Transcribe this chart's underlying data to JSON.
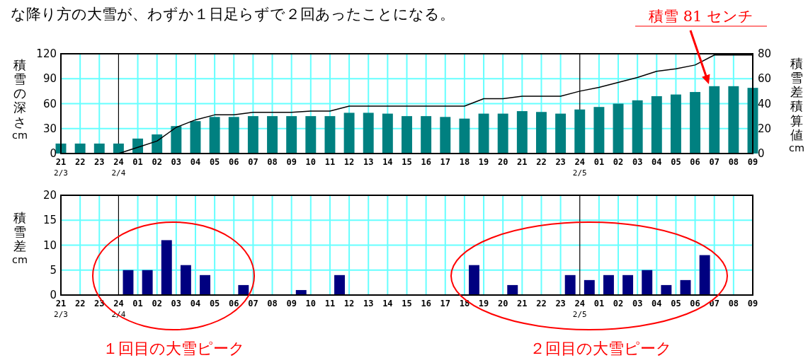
{
  "chart_data": [
    {
      "type": "bar",
      "annotations": [
        "な降り方の大雪が、わずか１日足らずで２回あったことになる。",
        "積雪 81 センチ"
      ],
      "ylabel": "積雪の深さ cm",
      "y2label": "積雪差積算値 cm",
      "x": [
        "--02-03T21:00",
        "--02-03T22:00",
        "--02-03T23:00",
        "--02-04T00:00",
        "--02-04T01:00",
        "--02-04T02:00",
        "--02-04T03:00",
        "--02-04T04:00",
        "--02-04T05:00",
        "--02-04T06:00",
        "--02-04T07:00",
        "--02-04T08:00",
        "--02-04T09:00",
        "--02-04T10:00",
        "--02-04T11:00",
        "--02-04T12:00",
        "--02-04T13:00",
        "--02-04T14:00",
        "--02-04T15:00",
        "--02-04T16:00",
        "--02-04T17:00",
        "--02-04T18:00",
        "--02-04T19:00",
        "--02-04T20:00",
        "--02-04T21:00",
        "--02-04T22:00",
        "--02-04T23:00",
        "--02-05T00:00",
        "--02-05T01:00",
        "--02-05T02:00",
        "--02-05T03:00",
        "--02-05T04:00",
        "--02-05T05:00",
        "--02-05T06:00",
        "--02-05T07:00",
        "--02-05T08:00",
        "--02-05T09:00"
      ],
      "series": [
        {
          "type": "bar",
          "color": "#008080",
          "values": [
            12,
            12,
            12,
            12,
            18,
            23,
            33,
            39,
            44,
            44,
            45,
            45,
            45,
            45,
            45,
            49,
            49,
            48,
            45,
            45,
            44,
            42,
            48,
            48,
            51,
            50,
            48,
            53,
            56,
            60,
            64,
            69,
            71,
            74,
            81,
            81,
            79
          ]
        },
        {
          "type": "line",
          "axis": "y2",
          "color": "#000000",
          "x": [
            "--02-04T00:00",
            "--02-04T01:00",
            "--02-04T02:00",
            "--02-04T03:00",
            "--02-04T04:00",
            "--02-04T05:00",
            "--02-04T06:00",
            "--02-04T07:00",
            "--02-04T08:00",
            "--02-04T09:00",
            "--02-04T10:00",
            "--02-04T11:00",
            "--02-04T12:00",
            "--02-04T13:00",
            "--02-04T14:00",
            "--02-04T15:00",
            "--02-04T16:00",
            "--02-04T17:00",
            "--02-04T18:00",
            "--02-04T19:00",
            "--02-04T20:00",
            "--02-04T21:00",
            "--02-04T22:00",
            "--02-04T23:00",
            "--02-05T00:00",
            "--02-05T01:00",
            "--02-05T02:00",
            "--02-05T03:00",
            "--02-05T04:00",
            "--02-05T05:00",
            "--02-05T06:00",
            "--02-05T07:00",
            "--02-05T08:00",
            "--02-05T09:00"
          ],
          "values": [
            0,
            5,
            10,
            21,
            27,
            31,
            31,
            33,
            33,
            33,
            34,
            34,
            38,
            38,
            38,
            38,
            38,
            38,
            38,
            44,
            44,
            46,
            46,
            46,
            50,
            53,
            57,
            61,
            66,
            68,
            71,
            79,
            79,
            79
          ]
        }
      ],
      "xlim": [
        "--02-03T21:00",
        "--02-05T09:00"
      ],
      "ylim": [
        0,
        120
      ],
      "yticks": [
        0,
        30,
        60,
        90,
        120
      ],
      "y2lim": [
        0,
        80
      ],
      "y2ticks": [
        0,
        20,
        40,
        60,
        80
      ],
      "xticks": [
        {
          "value": "--02-03T21:00",
          "label": "21\n2/3"
        },
        {
          "value": "--02-03T22:00",
          "label": "22"
        },
        {
          "value": "--02-03T23:00",
          "label": "23"
        },
        {
          "value": "--02-04T00:00",
          "label": "24\n2/4"
        },
        {
          "value": "--02-04T01:00",
          "label": "01"
        },
        {
          "value": "--02-04T02:00",
          "label": "02"
        },
        {
          "value": "--02-04T03:00",
          "label": "03"
        },
        {
          "value": "--02-04T04:00",
          "label": "04"
        },
        {
          "value": "--02-04T05:00",
          "label": "05"
        },
        {
          "value": "--02-04T06:00",
          "label": "06"
        },
        {
          "value": "--02-04T07:00",
          "label": "07"
        },
        {
          "value": "--02-04T08:00",
          "label": "08"
        },
        {
          "value": "--02-04T09:00",
          "label": "09"
        },
        {
          "value": "--02-04T10:00",
          "label": "10"
        },
        {
          "value": "--02-04T11:00",
          "label": "11"
        },
        {
          "value": "--02-04T12:00",
          "label": "12"
        },
        {
          "value": "--02-04T13:00",
          "label": "13"
        },
        {
          "value": "--02-04T14:00",
          "label": "14"
        },
        {
          "value": "--02-04T15:00",
          "label": "15"
        },
        {
          "value": "--02-04T16:00",
          "label": "16"
        },
        {
          "value": "--02-04T17:00",
          "label": "17"
        },
        {
          "value": "--02-04T18:00",
          "label": "18"
        },
        {
          "value": "--02-04T19:00",
          "label": "19"
        },
        {
          "value": "--02-04T20:00",
          "label": "20"
        },
        {
          "value": "--02-04T21:00",
          "label": "21"
        },
        {
          "value": "--02-04T22:00",
          "label": "22"
        },
        {
          "value": "--02-04T23:00",
          "label": "23"
        },
        {
          "value": "--02-05T00:00",
          "label": "24\n2/5"
        },
        {
          "value": "--02-05T01:00",
          "label": "01"
        },
        {
          "value": "--02-05T02:00",
          "label": "02"
        },
        {
          "value": "--02-05T03:00",
          "label": "03"
        },
        {
          "value": "--02-05T04:00",
          "label": "04"
        },
        {
          "value": "--02-05T05:00",
          "label": "05"
        },
        {
          "value": "--02-05T06:00",
          "label": "06"
        },
        {
          "value": "--02-05T07:00",
          "label": "07"
        },
        {
          "value": "--02-05T08:00",
          "label": "08"
        },
        {
          "value": "--02-05T09:00",
          "label": "09"
        }
      ],
      "grid": true
    },
    {
      "type": "bar",
      "annotations": [
        "１回目の大雪ピーク",
        "２回目の大雪ピーク"
      ],
      "ylabel": "積雪差 cm",
      "x": [
        "--02-04T00:30",
        "--02-04T01:30",
        "--02-04T02:30",
        "--02-04T03:30",
        "--02-04T04:30",
        "--02-04T06:30",
        "--02-04T09:30",
        "--02-04T11:30",
        "--02-04T18:30",
        "--02-04T20:30",
        "--02-04T23:30",
        "--02-05T00:30",
        "--02-05T01:30",
        "--02-05T02:30",
        "--02-05T03:30",
        "--02-05T04:30",
        "--02-05T05:30",
        "--02-05T06:30"
      ],
      "series": [
        {
          "type": "bar",
          "color": "#000080",
          "values": [
            5,
            5,
            11,
            6,
            4,
            2,
            1,
            4,
            6,
            2,
            4,
            3,
            4,
            4,
            5,
            2,
            3,
            8
          ]
        }
      ],
      "xlim": [
        "--02-03T21:00",
        "--02-05T09:00"
      ],
      "ylim": [
        0,
        20
      ],
      "yticks": [
        0,
        5,
        10,
        15,
        20
      ],
      "xticks": [
        {
          "value": "--02-03T21:00",
          "label": "21\n2/3"
        },
        {
          "value": "--02-03T22:00",
          "label": "22"
        },
        {
          "value": "--02-03T23:00",
          "label": "23"
        },
        {
          "value": "--02-04T00:00",
          "label": "24\n2/4"
        },
        {
          "value": "--02-04T01:00",
          "label": "01"
        },
        {
          "value": "--02-04T02:00",
          "label": "02"
        },
        {
          "value": "--02-04T03:00",
          "label": "03"
        },
        {
          "value": "--02-04T04:00",
          "label": "04"
        },
        {
          "value": "--02-04T05:00",
          "label": "05"
        },
        {
          "value": "--02-04T06:00",
          "label": "06"
        },
        {
          "value": "--02-04T07:00",
          "label": "07"
        },
        {
          "value": "--02-04T08:00",
          "label": "08"
        },
        {
          "value": "--02-04T09:00",
          "label": "09"
        },
        {
          "value": "--02-04T10:00",
          "label": "10"
        },
        {
          "value": "--02-04T11:00",
          "label": "11"
        },
        {
          "value": "--02-04T12:00",
          "label": "12"
        },
        {
          "value": "--02-04T13:00",
          "label": "13"
        },
        {
          "value": "--02-04T14:00",
          "label": "14"
        },
        {
          "value": "--02-04T15:00",
          "label": "15"
        },
        {
          "value": "--02-04T16:00",
          "label": "16"
        },
        {
          "value": "--02-04T17:00",
          "label": "17"
        },
        {
          "value": "--02-04T18:00",
          "label": "18"
        },
        {
          "value": "--02-04T19:00",
          "label": "19"
        },
        {
          "value": "--02-04T20:00",
          "label": "20"
        },
        {
          "value": "--02-04T21:00",
          "label": "21"
        },
        {
          "value": "--02-04T22:00",
          "label": "22"
        },
        {
          "value": "--02-04T23:00",
          "label": "23"
        },
        {
          "value": "--02-05T00:00",
          "label": "24\n2/5"
        },
        {
          "value": "--02-05T01:00",
          "label": "01"
        },
        {
          "value": "--02-05T02:00",
          "label": "02"
        },
        {
          "value": "--02-05T03:00",
          "label": "03"
        },
        {
          "value": "--02-05T04:00",
          "label": "04"
        },
        {
          "value": "--02-05T05:00",
          "label": "05"
        },
        {
          "value": "--02-05T06:00",
          "label": "06"
        },
        {
          "value": "--02-05T07:00",
          "label": "07"
        },
        {
          "value": "--02-05T08:00",
          "label": "08"
        },
        {
          "value": "--02-05T09:00",
          "label": "09"
        }
      ],
      "grid": true
    }
  ]
}
